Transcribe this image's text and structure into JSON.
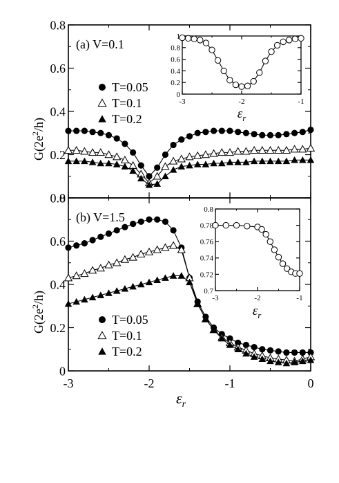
{
  "chart_data": [
    {
      "panel_label": "(a) V=0.1",
      "type": "line",
      "xlabel": "ε",
      "xlabel_sub": "r",
      "ylabel_main": "G(2e",
      "ylabel_sup": "2",
      "ylabel_tail": "/h)",
      "xlim": [
        -3,
        0
      ],
      "ylim": [
        0,
        0.8
      ],
      "xticks": [
        -3,
        -2,
        -1,
        0
      ],
      "yticks": [
        0,
        0.2,
        0.4,
        0.6,
        0.8
      ],
      "ytick_labels": [
        "0",
        "0.2",
        "0.4",
        "0.6",
        "0.8"
      ],
      "legend_position": "left",
      "series": [
        {
          "name": "T=0.05",
          "marker": "filled-circle",
          "x": [
            -3.0,
            -2.9,
            -2.8,
            -2.7,
            -2.6,
            -2.5,
            -2.4,
            -2.3,
            -2.2,
            -2.1,
            -2.0,
            -1.9,
            -1.8,
            -1.7,
            -1.6,
            -1.5,
            -1.4,
            -1.3,
            -1.2,
            -1.1,
            -1.0,
            -0.9,
            -0.8,
            -0.7,
            -0.6,
            -0.5,
            -0.4,
            -0.3,
            -0.2,
            -0.1,
            0.0
          ],
          "y": [
            0.31,
            0.31,
            0.31,
            0.305,
            0.3,
            0.29,
            0.275,
            0.25,
            0.21,
            0.15,
            0.1,
            0.14,
            0.2,
            0.245,
            0.27,
            0.285,
            0.3,
            0.305,
            0.31,
            0.31,
            0.31,
            0.305,
            0.3,
            0.295,
            0.29,
            0.29,
            0.29,
            0.295,
            0.3,
            0.305,
            0.315
          ]
        },
        {
          "name": "T=0.1",
          "marker": "open-triangle",
          "x": [
            -3.0,
            -2.9,
            -2.8,
            -2.7,
            -2.6,
            -2.5,
            -2.4,
            -2.3,
            -2.2,
            -2.1,
            -2.0,
            -1.9,
            -1.8,
            -1.7,
            -1.6,
            -1.5,
            -1.4,
            -1.3,
            -1.2,
            -1.1,
            -1.0,
            -0.9,
            -0.8,
            -0.7,
            -0.6,
            -0.5,
            -0.4,
            -0.3,
            -0.2,
            -0.1,
            0.0
          ],
          "y": [
            0.22,
            0.22,
            0.215,
            0.21,
            0.21,
            0.2,
            0.19,
            0.175,
            0.15,
            0.11,
            0.07,
            0.1,
            0.145,
            0.17,
            0.18,
            0.19,
            0.195,
            0.2,
            0.205,
            0.21,
            0.21,
            0.215,
            0.215,
            0.22,
            0.22,
            0.22,
            0.22,
            0.22,
            0.225,
            0.225,
            0.23
          ]
        },
        {
          "name": "T=0.2",
          "marker": "filled-triangle",
          "x": [
            -3.0,
            -2.9,
            -2.8,
            -2.7,
            -2.6,
            -2.5,
            -2.4,
            -2.3,
            -2.2,
            -2.1,
            -2.0,
            -1.9,
            -1.8,
            -1.7,
            -1.6,
            -1.5,
            -1.4,
            -1.3,
            -1.2,
            -1.1,
            -1.0,
            -0.9,
            -0.8,
            -0.7,
            -0.6,
            -0.5,
            -0.4,
            -0.3,
            -0.2,
            -0.1,
            0.0
          ],
          "y": [
            0.17,
            0.17,
            0.17,
            0.165,
            0.16,
            0.16,
            0.155,
            0.145,
            0.125,
            0.09,
            0.06,
            0.065,
            0.1,
            0.13,
            0.145,
            0.15,
            0.155,
            0.155,
            0.16,
            0.16,
            0.165,
            0.165,
            0.165,
            0.17,
            0.17,
            0.17,
            0.17,
            0.17,
            0.175,
            0.175,
            0.175
          ]
        }
      ]
    },
    {
      "panel_label": "(b) V=1.5",
      "type": "line",
      "xlabel": "ε",
      "xlabel_sub": "r",
      "ylabel_main": "G(2e",
      "ylabel_sup": "2",
      "ylabel_tail": "/h)",
      "xlim": [
        -3,
        0
      ],
      "ylim": [
        0,
        0.8
      ],
      "xticks": [
        -3,
        -2,
        -1,
        0
      ],
      "xtick_labels": [
        "-3",
        "-2",
        "-1",
        "0"
      ],
      "yticks": [
        0,
        0.2,
        0.4,
        0.6,
        0.8
      ],
      "ytick_labels": [
        "0",
        "0.2",
        "0.4",
        "0.6",
        "0.8"
      ],
      "legend_position": "lower-left",
      "series": [
        {
          "name": "T=0.05",
          "marker": "filled-circle",
          "x": [
            -3.0,
            -2.9,
            -2.8,
            -2.7,
            -2.6,
            -2.5,
            -2.4,
            -2.3,
            -2.2,
            -2.1,
            -2.0,
            -1.9,
            -1.8,
            -1.7,
            -1.6,
            -1.5,
            -1.4,
            -1.3,
            -1.2,
            -1.1,
            -1.0,
            -0.9,
            -0.8,
            -0.7,
            -0.6,
            -0.5,
            -0.4,
            -0.3,
            -0.2,
            -0.1,
            0.0
          ],
          "y": [
            0.57,
            0.58,
            0.59,
            0.605,
            0.62,
            0.635,
            0.65,
            0.665,
            0.68,
            0.69,
            0.7,
            0.7,
            0.69,
            0.65,
            0.57,
            0.43,
            0.32,
            0.25,
            0.2,
            0.17,
            0.15,
            0.13,
            0.12,
            0.11,
            0.1,
            0.095,
            0.09,
            0.085,
            0.085,
            0.085,
            0.085
          ]
        },
        {
          "name": "T=0.1",
          "marker": "open-triangle",
          "x": [
            -3.0,
            -2.9,
            -2.8,
            -2.7,
            -2.6,
            -2.5,
            -2.4,
            -2.3,
            -2.2,
            -2.1,
            -2.0,
            -1.9,
            -1.8,
            -1.7,
            -1.6,
            -1.5,
            -1.4,
            -1.3,
            -1.2,
            -1.1,
            -1.0,
            -0.9,
            -0.8,
            -0.7,
            -0.6,
            -0.5,
            -0.4,
            -0.3,
            -0.2,
            -0.1,
            0.0
          ],
          "y": [
            0.43,
            0.44,
            0.45,
            0.465,
            0.475,
            0.49,
            0.5,
            0.515,
            0.525,
            0.54,
            0.55,
            0.56,
            0.57,
            0.58,
            0.56,
            0.43,
            0.31,
            0.24,
            0.19,
            0.155,
            0.13,
            0.11,
            0.095,
            0.08,
            0.07,
            0.06,
            0.055,
            0.05,
            0.045,
            0.055,
            0.065
          ]
        },
        {
          "name": "T=0.2",
          "marker": "filled-triangle",
          "x": [
            -3.0,
            -2.9,
            -2.8,
            -2.7,
            -2.6,
            -2.5,
            -2.4,
            -2.3,
            -2.2,
            -2.1,
            -2.0,
            -1.9,
            -1.8,
            -1.7,
            -1.6,
            -1.5,
            -1.4,
            -1.3,
            -1.2,
            -1.1,
            -1.0,
            -0.9,
            -0.8,
            -0.7,
            -0.6,
            -0.5,
            -0.4,
            -0.3,
            -0.2,
            -0.1,
            0.0
          ],
          "y": [
            0.31,
            0.32,
            0.33,
            0.34,
            0.35,
            0.36,
            0.37,
            0.38,
            0.39,
            0.4,
            0.41,
            0.42,
            0.43,
            0.44,
            0.44,
            0.41,
            0.31,
            0.24,
            0.19,
            0.15,
            0.12,
            0.1,
            0.08,
            0.065,
            0.055,
            0.045,
            0.04,
            0.035,
            0.04,
            0.045,
            0.05
          ]
        }
      ]
    },
    {
      "panel": "inset (a)",
      "type": "line",
      "xlabel": "ε",
      "xlabel_sub": "r",
      "xlim": [
        -3,
        -1
      ],
      "ylim": [
        0,
        1
      ],
      "xticks": [
        -3,
        -2,
        -1
      ],
      "yticks": [
        0,
        0.2,
        0.4,
        0.6,
        0.8,
        1
      ],
      "ytick_labels": [
        "0",
        "0.2",
        "0.4",
        "0.6",
        "0.8",
        "1"
      ],
      "series": [
        {
          "marker": "open-circle",
          "x": [
            -3.0,
            -2.9,
            -2.8,
            -2.7,
            -2.6,
            -2.5,
            -2.4,
            -2.3,
            -2.2,
            -2.1,
            -2.0,
            -1.9,
            -1.8,
            -1.7,
            -1.6,
            -1.5,
            -1.4,
            -1.3,
            -1.2,
            -1.1,
            -1.0
          ],
          "y": [
            0.97,
            0.96,
            0.95,
            0.93,
            0.88,
            0.76,
            0.58,
            0.4,
            0.24,
            0.16,
            0.13,
            0.14,
            0.22,
            0.37,
            0.57,
            0.73,
            0.84,
            0.9,
            0.93,
            0.95,
            0.96
          ]
        }
      ]
    },
    {
      "panel": "inset (b)",
      "type": "line",
      "xlabel": "ε",
      "xlabel_sub": "r",
      "xlim": [
        -3,
        -1
      ],
      "ylim": [
        0.7,
        0.8
      ],
      "xticks": [
        -3,
        -2,
        -1
      ],
      "yticks": [
        0.7,
        0.72,
        0.74,
        0.76,
        0.78,
        0.8
      ],
      "ytick_labels": [
        "0.7",
        "0.72",
        "0.74",
        "0.76",
        "0.78",
        "0.8"
      ],
      "series": [
        {
          "marker": "open-circle",
          "x": [
            -3.0,
            -2.75,
            -2.5,
            -2.25,
            -2.0,
            -1.9,
            -1.8,
            -1.7,
            -1.6,
            -1.5,
            -1.4,
            -1.3,
            -1.2,
            -1.1,
            -1.0
          ],
          "y": [
            0.78,
            0.78,
            0.78,
            0.779,
            0.778,
            0.775,
            0.769,
            0.76,
            0.75,
            0.741,
            0.733,
            0.727,
            0.723,
            0.721,
            0.721
          ]
        }
      ]
    }
  ]
}
